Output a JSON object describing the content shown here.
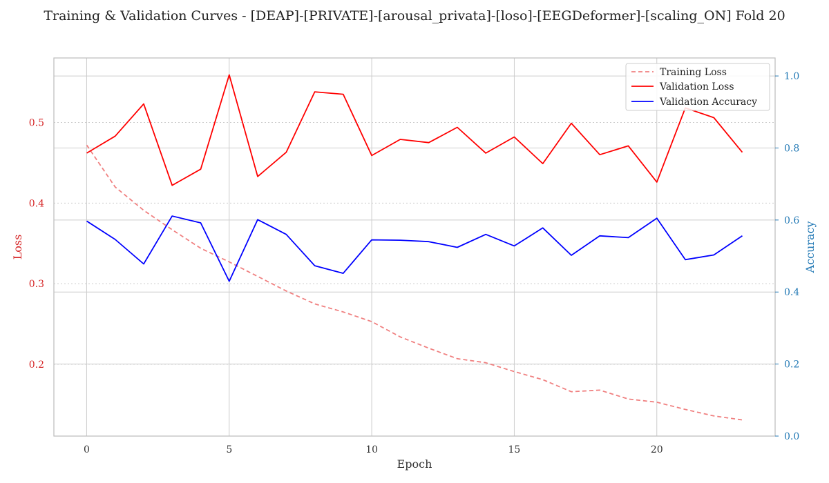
{
  "chart_data": {
    "type": "line",
    "title": "Training & Validation Curves - [DEAP]-[PRIVATE]-[arousal_privata]-[loso]-[EEGDeformer]-[scaling_ON] Fold 20",
    "xlabel": "Epoch",
    "ylabel_left": "Loss",
    "ylabel_right": "Accuracy",
    "x": [
      0,
      1,
      2,
      3,
      4,
      5,
      6,
      7,
      8,
      9,
      10,
      11,
      12,
      13,
      14,
      15,
      16,
      17,
      18,
      19,
      20,
      21,
      22,
      23
    ],
    "xticks": [
      0,
      5,
      10,
      15,
      20
    ],
    "xlim": [
      -1.15,
      24.15
    ],
    "ylim_left": [
      0.111,
      0.58
    ],
    "yticks_left": [
      0.2,
      0.3,
      0.4,
      0.5
    ],
    "ylim_right": [
      0.0,
      1.05
    ],
    "yticks_right": [
      0.0,
      0.2,
      0.4,
      0.6,
      0.8,
      1.0
    ],
    "grid": true,
    "legend_position": "top-right",
    "series": [
      {
        "name": "Training Loss",
        "axis": "left",
        "color": "#f08080",
        "style": "dashed",
        "values": [
          0.472,
          0.42,
          0.391,
          0.367,
          0.344,
          0.327,
          0.309,
          0.291,
          0.275,
          0.265,
          0.253,
          0.234,
          0.22,
          0.207,
          0.202,
          0.191,
          0.181,
          0.166,
          0.168,
          0.157,
          0.153,
          0.144,
          0.136,
          0.131
        ]
      },
      {
        "name": "Validation Loss",
        "axis": "left",
        "color": "#ff0000",
        "style": "solid",
        "values": [
          0.462,
          0.483,
          0.523,
          0.422,
          0.442,
          0.559,
          0.433,
          0.463,
          0.538,
          0.535,
          0.459,
          0.479,
          0.475,
          0.494,
          0.462,
          0.482,
          0.449,
          0.499,
          0.46,
          0.471,
          0.426,
          0.518,
          0.506,
          0.463
        ]
      },
      {
        "name": "Validation Accuracy",
        "axis": "right",
        "color": "#0000ff",
        "style": "solid",
        "values": [
          0.597,
          0.546,
          0.478,
          0.611,
          0.592,
          0.43,
          0.601,
          0.56,
          0.473,
          0.452,
          0.545,
          0.544,
          0.54,
          0.524,
          0.56,
          0.528,
          0.578,
          0.502,
          0.556,
          0.551,
          0.605,
          0.49,
          0.503,
          0.556
        ]
      }
    ]
  },
  "colors": {
    "left_axis": "#d62728",
    "right_axis": "#1f77b4",
    "grid": "#cccccc",
    "frame": "#bbbbbb",
    "text": "#333333"
  }
}
